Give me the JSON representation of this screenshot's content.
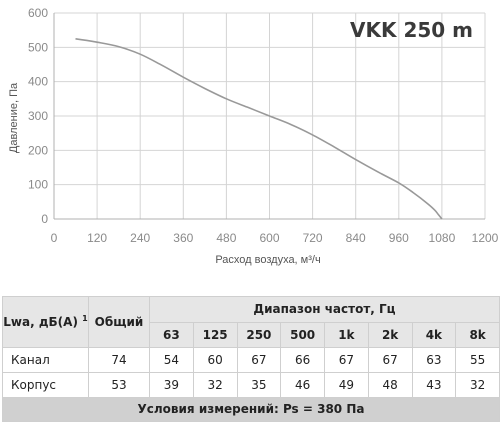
{
  "chart_data": {
    "type": "line",
    "title": "VKK 250 m",
    "xlabel": "Расход воздуха, м³/ч",
    "ylabel": "Давление, Па",
    "xlim": [
      0,
      1200
    ],
    "ylim": [
      0,
      600
    ],
    "x_ticks": [
      "0",
      "120",
      "240",
      "360",
      "480",
      "600",
      "720",
      "840",
      "960",
      "1080",
      "1200"
    ],
    "y_ticks": [
      "0",
      "100",
      "200",
      "300",
      "400",
      "500",
      "600"
    ],
    "grid": true,
    "series": [
      {
        "color": "#999999",
        "x": [
          60,
          120,
          180,
          240,
          300,
          360,
          420,
          480,
          540,
          600,
          660,
          720,
          780,
          840,
          900,
          960,
          1000,
          1040,
          1060,
          1070,
          1080
        ],
        "y": [
          525,
          515,
          502,
          480,
          448,
          413,
          380,
          350,
          325,
          300,
          275,
          245,
          210,
          173,
          138,
          105,
          77,
          45,
          26,
          13,
          0
        ]
      }
    ]
  },
  "table": {
    "lwa_label": "Lwa, дБ(А)",
    "lwa_sup": "1",
    "total_label": "Общий",
    "freq_header": "Диапазон частот, Гц",
    "freqs": [
      "63",
      "125",
      "250",
      "500",
      "1k",
      "2k",
      "4k",
      "8k"
    ],
    "rows": [
      {
        "label": "Канал",
        "total": "74",
        "values": [
          "54",
          "60",
          "67",
          "66",
          "67",
          "67",
          "63",
          "55"
        ]
      },
      {
        "label": "Корпус",
        "total": "53",
        "values": [
          "39",
          "32",
          "35",
          "46",
          "49",
          "48",
          "43",
          "32"
        ]
      }
    ],
    "footer": "Условия измерений: Ps = 380 Па"
  }
}
